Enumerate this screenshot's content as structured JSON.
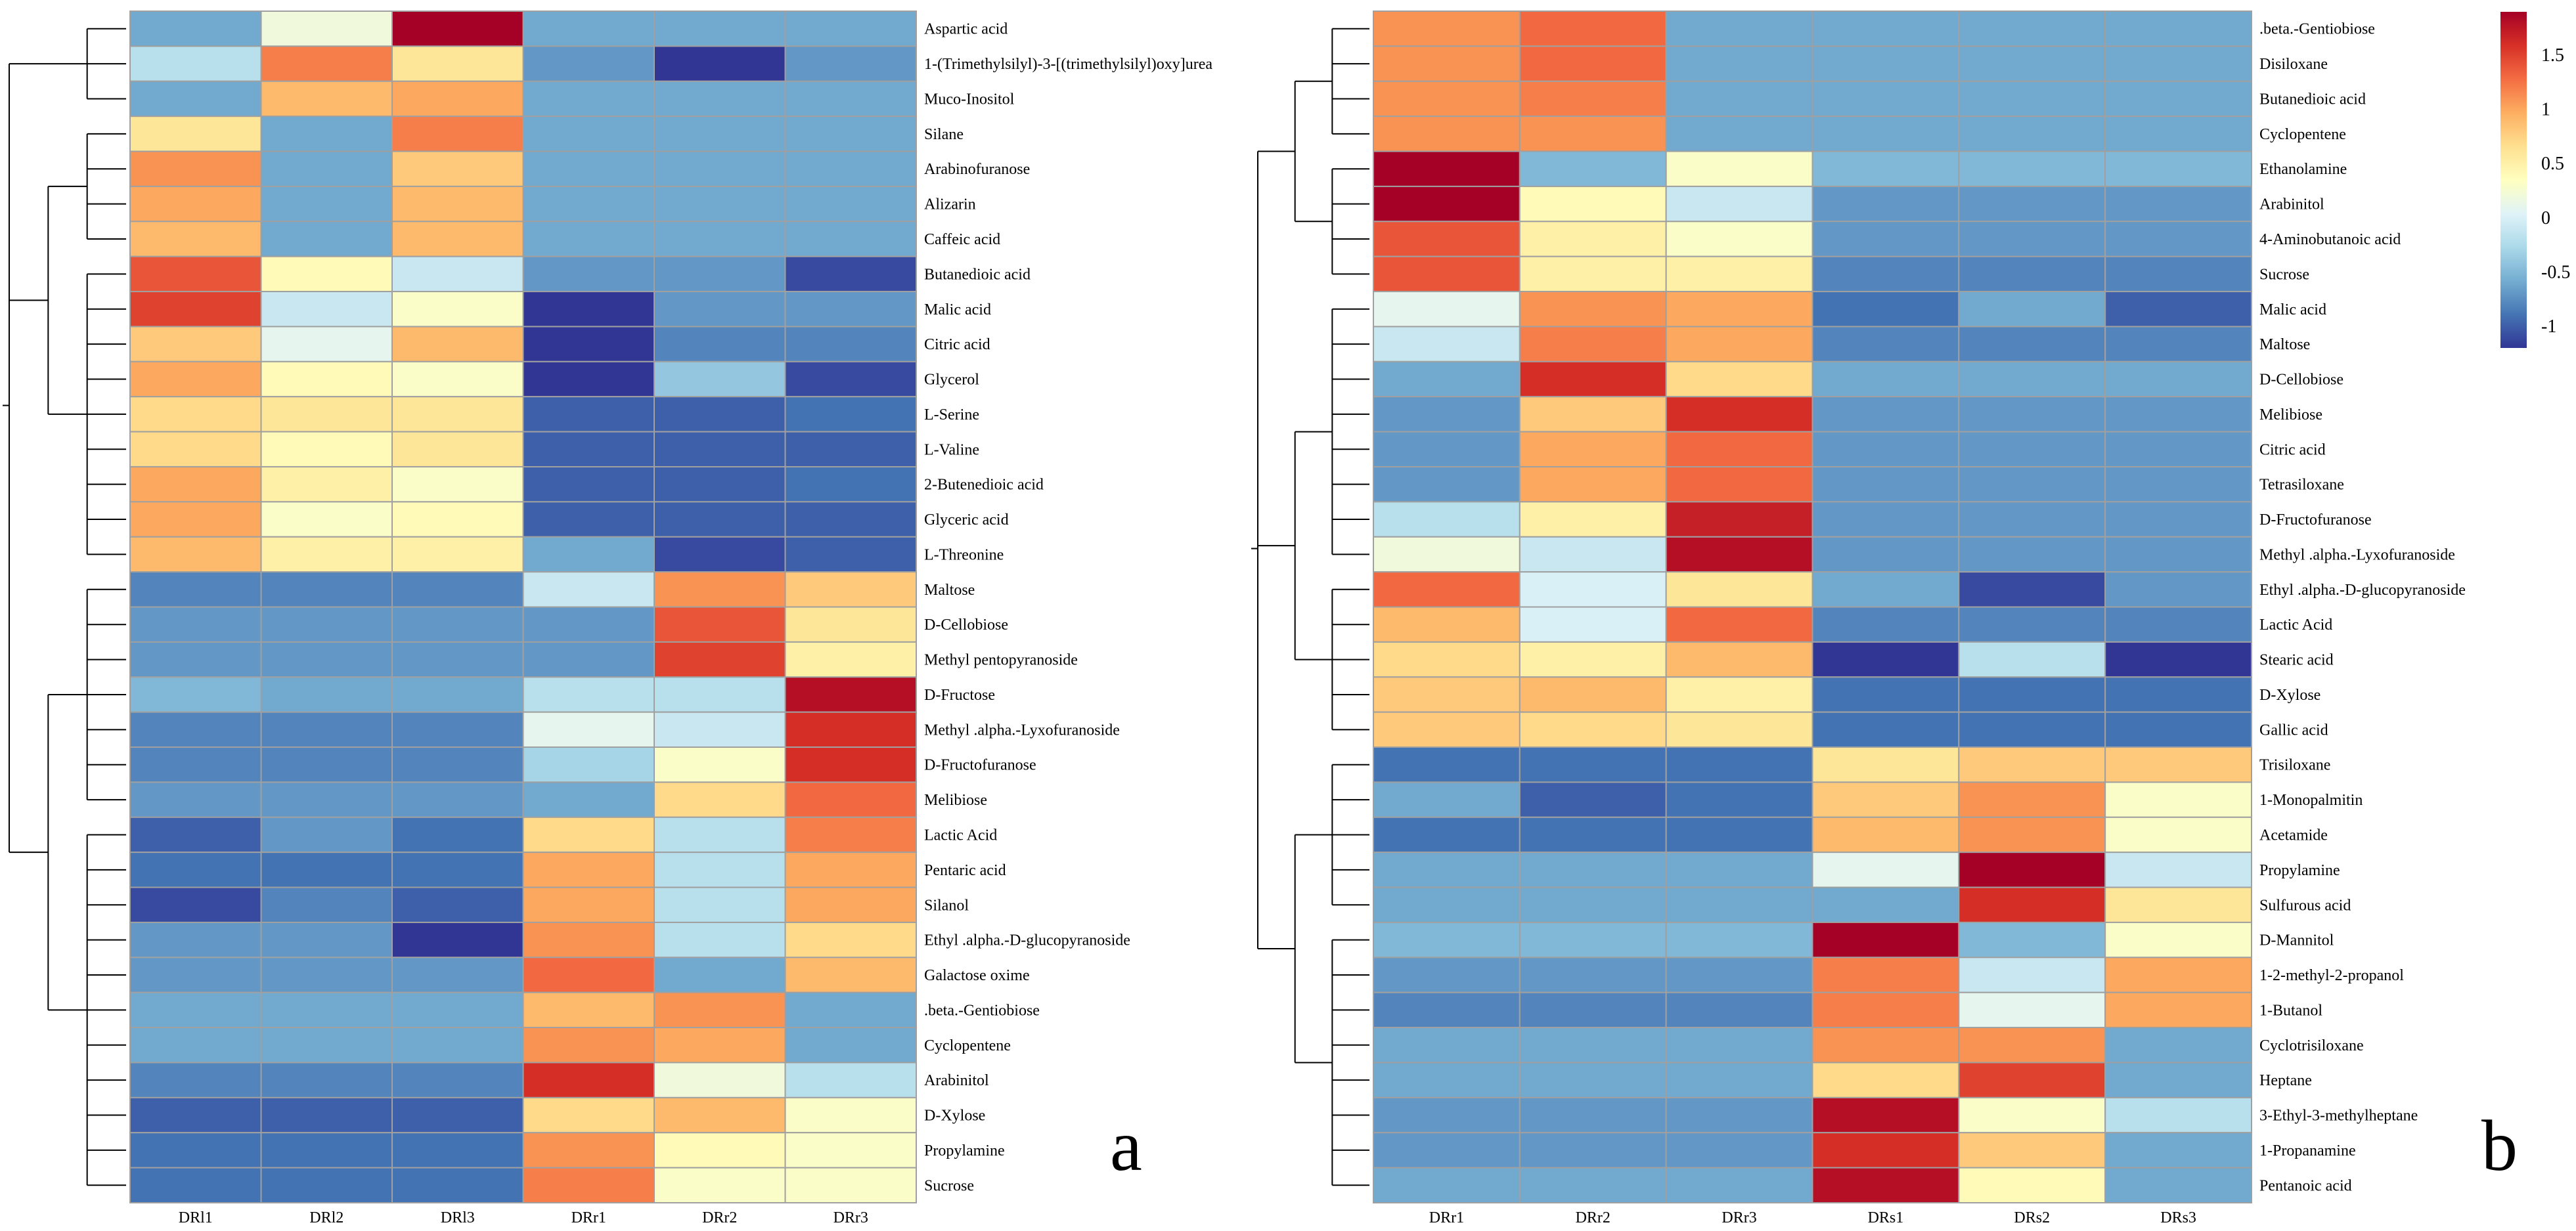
{
  "colors": {
    "scale": [
      "#313695",
      "#4575b4",
      "#74add1",
      "#abd9e9",
      "#e0f3f8",
      "#ffffbf",
      "#fee090",
      "#fdae61",
      "#f46d43",
      "#d73027",
      "#a50026"
    ],
    "grid": "#a0a0a0",
    "tree": "#000000"
  },
  "legend": {
    "min": -1.2,
    "max": 1.9,
    "ticks": [
      {
        "label": "1.5",
        "value": 1.5
      },
      {
        "label": "1",
        "value": 1.0
      },
      {
        "label": "0.5",
        "value": 0.5
      },
      {
        "label": "0",
        "value": 0
      },
      {
        "label": "-0.5",
        "value": -0.5
      },
      {
        "label": "-1",
        "value": -1.0
      }
    ]
  },
  "chart_data": [
    {
      "type": "heatmap",
      "panel_label": "a",
      "columns": [
        "DRl1",
        "DRl2",
        "DRl3",
        "DRr1",
        "DRr2",
        "DRr3"
      ],
      "rows": [
        "Aspartic acid",
        "1-(Trimethylsilyl)-3-[(trimethylsilyl)oxy]urea",
        "Muco-Inositol",
        "Silane",
        "Arabinofuranose",
        "Alizarin",
        "Caffeic acid",
        "Butanedioic acid",
        "Malic acid",
        "Citric acid",
        "Glycerol",
        "L-Serine",
        "L-Valine",
        "2-Butenedioic acid",
        "Glyceric acid",
        "L-Threonine",
        "Maltose",
        "D-Cellobiose",
        "Methyl pentopyranoside",
        "D-Fructose",
        "Methyl .alpha.-Lyxofuranoside",
        "D-Fructofuranose",
        "Melibiose",
        "Lactic Acid",
        "Pentaric acid",
        "Silanol",
        "Ethyl .alpha.-D-glucopyranoside",
        "Galactose oxime",
        ".beta.-Gentiobiose",
        "Cyclopentene",
        "Arabinitol",
        "D-Xylose",
        "Propylamine",
        "Sucrose"
      ],
      "values": [
        [
          -0.6,
          0.2,
          1.9,
          -0.6,
          -0.6,
          -0.6
        ],
        [
          -0.2,
          1.2,
          0.6,
          -0.7,
          -1.2,
          -0.7
        ],
        [
          -0.6,
          0.9,
          1.0,
          -0.6,
          -0.6,
          -0.6
        ],
        [
          0.6,
          -0.6,
          1.2,
          -0.6,
          -0.6,
          -0.6
        ],
        [
          1.1,
          -0.6,
          0.8,
          -0.6,
          -0.6,
          -0.6
        ],
        [
          1.0,
          -0.6,
          0.9,
          -0.6,
          -0.6,
          -0.6
        ],
        [
          0.9,
          -0.6,
          0.9,
          -0.6,
          -0.6,
          -0.6
        ],
        [
          1.4,
          0.4,
          -0.1,
          -0.7,
          -0.7,
          -1.1
        ],
        [
          1.5,
          -0.1,
          0.3,
          -1.2,
          -0.7,
          -0.7
        ],
        [
          0.8,
          0.1,
          0.9,
          -1.2,
          -0.8,
          -0.8
        ],
        [
          1.0,
          0.4,
          0.3,
          -1.2,
          -0.4,
          -1.1
        ],
        [
          0.7,
          0.6,
          0.6,
          -1.0,
          -1.0,
          -0.9
        ],
        [
          0.7,
          0.4,
          0.6,
          -1.0,
          -1.0,
          -1.0
        ],
        [
          1.0,
          0.5,
          0.3,
          -1.0,
          -1.0,
          -0.9
        ],
        [
          1.0,
          0.3,
          0.4,
          -1.0,
          -1.0,
          -1.0
        ],
        [
          0.9,
          0.5,
          0.5,
          -0.6,
          -1.1,
          -1.0
        ],
        [
          -0.8,
          -0.8,
          -0.8,
          -0.1,
          1.1,
          0.8
        ],
        [
          -0.7,
          -0.7,
          -0.7,
          -0.7,
          1.4,
          0.6
        ],
        [
          -0.7,
          -0.7,
          -0.7,
          -0.7,
          1.5,
          0.5
        ],
        [
          -0.5,
          -0.6,
          -0.6,
          -0.2,
          -0.2,
          1.8
        ],
        [
          -0.8,
          -0.8,
          -0.8,
          0.1,
          -0.1,
          1.6
        ],
        [
          -0.8,
          -0.8,
          -0.8,
          -0.3,
          0.3,
          1.6
        ],
        [
          -0.7,
          -0.7,
          -0.7,
          -0.6,
          0.7,
          1.3
        ],
        [
          -1.0,
          -0.7,
          -0.9,
          0.7,
          -0.2,
          1.2
        ],
        [
          -0.9,
          -0.9,
          -0.9,
          1.0,
          -0.2,
          1.0
        ],
        [
          -1.1,
          -0.8,
          -1.0,
          1.0,
          -0.2,
          1.0
        ],
        [
          -0.7,
          -0.7,
          -1.2,
          1.1,
          -0.2,
          0.7
        ],
        [
          -0.7,
          -0.7,
          -0.7,
          1.3,
          -0.6,
          0.9
        ],
        [
          -0.6,
          -0.6,
          -0.6,
          0.9,
          1.1,
          -0.6
        ],
        [
          -0.6,
          -0.6,
          -0.6,
          1.1,
          1.0,
          -0.6
        ],
        [
          -0.8,
          -0.8,
          -0.8,
          1.6,
          0.2,
          -0.2
        ],
        [
          -1.0,
          -1.0,
          -1.0,
          0.7,
          0.9,
          0.3
        ],
        [
          -0.9,
          -0.9,
          -0.9,
          1.1,
          0.4,
          0.3
        ],
        [
          -0.9,
          -0.9,
          -0.9,
          1.2,
          0.3,
          0.3
        ]
      ],
      "row_clusters": [
        [
          0,
          1,
          2
        ],
        [
          [
            3,
            4,
            5,
            6
          ],
          [
            7,
            8,
            9,
            10,
            11,
            12,
            13,
            14,
            15
          ]
        ],
        [
          [
            16,
            17,
            18,
            19,
            20,
            21,
            22
          ],
          [
            23,
            24,
            25,
            26,
            27,
            28,
            29,
            30,
            31,
            32,
            33
          ]
        ]
      ]
    },
    {
      "type": "heatmap",
      "panel_label": "b",
      "columns": [
        "DRr1",
        "DRr2",
        "DRr3",
        "DRs1",
        "DRs2",
        "DRs3"
      ],
      "rows": [
        ".beta.-Gentiobiose",
        "Disiloxane",
        "Butanedioic acid",
        "Cyclopentene",
        "Ethanolamine",
        "Arabinitol",
        "4-Aminobutanoic acid",
        "Sucrose",
        "Malic acid",
        "Maltose",
        "D-Cellobiose",
        "Melibiose",
        "Citric acid",
        "Tetrasiloxane",
        "D-Fructofuranose",
        "Methyl .alpha.-Lyxofuranoside",
        "Ethyl .alpha.-D-glucopyranoside",
        "Lactic Acid",
        "Stearic acid",
        "D-Xylose",
        "Gallic acid",
        "Trisiloxane",
        "1-Monopalmitin",
        "Acetamide",
        "Propylamine",
        "Sulfurous acid",
        "D-Mannitol",
        "1-2-methyl-2-propanol",
        "1-Butanol",
        "Cyclotrisiloxane",
        "Heptane",
        "3-Ethyl-3-methylheptane",
        "1-Propanamine",
        "Pentanoic acid"
      ],
      "values": [
        [
          1.1,
          1.3,
          -0.6,
          -0.6,
          -0.6,
          -0.6
        ],
        [
          1.1,
          1.3,
          -0.6,
          -0.6,
          -0.6,
          -0.6
        ],
        [
          1.1,
          1.2,
          -0.6,
          -0.6,
          -0.6,
          -0.6
        ],
        [
          1.1,
          1.1,
          -0.6,
          -0.6,
          -0.6,
          -0.6
        ],
        [
          1.9,
          -0.5,
          0.3,
          -0.5,
          -0.5,
          -0.5
        ],
        [
          1.9,
          0.4,
          -0.1,
          -0.7,
          -0.7,
          -0.7
        ],
        [
          1.4,
          0.5,
          0.3,
          -0.7,
          -0.7,
          -0.7
        ],
        [
          1.4,
          0.5,
          0.5,
          -0.8,
          -0.8,
          -0.8
        ],
        [
          0.1,
          1.1,
          1.0,
          -0.9,
          -0.6,
          -1.0
        ],
        [
          -0.1,
          1.2,
          1.0,
          -0.8,
          -0.8,
          -0.8
        ],
        [
          -0.6,
          1.6,
          0.7,
          -0.6,
          -0.6,
          -0.6
        ],
        [
          -0.7,
          0.8,
          1.6,
          -0.7,
          -0.7,
          -0.7
        ],
        [
          -0.7,
          1.0,
          1.3,
          -0.7,
          -0.7,
          -0.7
        ],
        [
          -0.7,
          1.0,
          1.3,
          -0.7,
          -0.7,
          -0.7
        ],
        [
          -0.2,
          0.5,
          1.7,
          -0.7,
          -0.7,
          -0.7
        ],
        [
          0.2,
          -0.1,
          1.8,
          -0.7,
          -0.7,
          -0.7
        ],
        [
          1.3,
          0.0,
          0.6,
          -0.6,
          -1.1,
          -0.7
        ],
        [
          0.9,
          0.0,
          1.3,
          -0.8,
          -0.8,
          -0.8
        ],
        [
          0.7,
          0.5,
          0.9,
          -1.2,
          -0.2,
          -1.2
        ],
        [
          0.8,
          0.9,
          0.5,
          -0.9,
          -0.9,
          -0.9
        ],
        [
          0.8,
          0.7,
          0.6,
          -0.9,
          -0.9,
          -0.9
        ],
        [
          -0.9,
          -0.9,
          -0.9,
          0.6,
          0.8,
          0.8
        ],
        [
          -0.6,
          -1.0,
          -0.9,
          0.8,
          1.1,
          0.3
        ],
        [
          -0.9,
          -0.9,
          -0.9,
          0.9,
          1.1,
          0.3
        ],
        [
          -0.6,
          -0.6,
          -0.6,
          0.1,
          1.9,
          -0.1
        ],
        [
          -0.6,
          -0.6,
          -0.6,
          -0.6,
          1.6,
          0.6
        ],
        [
          -0.5,
          -0.5,
          -0.5,
          1.9,
          -0.5,
          0.3
        ],
        [
          -0.7,
          -0.7,
          -0.7,
          1.2,
          -0.1,
          1.0
        ],
        [
          -0.8,
          -0.8,
          -0.8,
          1.2,
          0.1,
          1.0
        ],
        [
          -0.6,
          -0.6,
          -0.6,
          1.1,
          1.1,
          -0.6
        ],
        [
          -0.6,
          -0.6,
          -0.6,
          0.7,
          1.5,
          -0.6
        ],
        [
          -0.7,
          -0.7,
          -0.7,
          1.8,
          0.3,
          -0.2
        ],
        [
          -0.7,
          -0.7,
          -0.7,
          1.6,
          0.8,
          -0.6
        ],
        [
          -0.6,
          -0.6,
          -0.6,
          1.8,
          0.4,
          -0.6
        ]
      ],
      "row_clusters": [
        [
          [
            0,
            1,
            2,
            3
          ],
          [
            4,
            5,
            6,
            7
          ]
        ],
        [
          [
            8,
            9,
            10,
            11,
            12,
            13,
            14,
            15
          ],
          [
            16,
            17,
            18,
            19,
            20
          ]
        ],
        [
          [
            21,
            22,
            23,
            24,
            25
          ],
          [
            26,
            27,
            28,
            29,
            30,
            31,
            32,
            33
          ]
        ]
      ]
    }
  ]
}
